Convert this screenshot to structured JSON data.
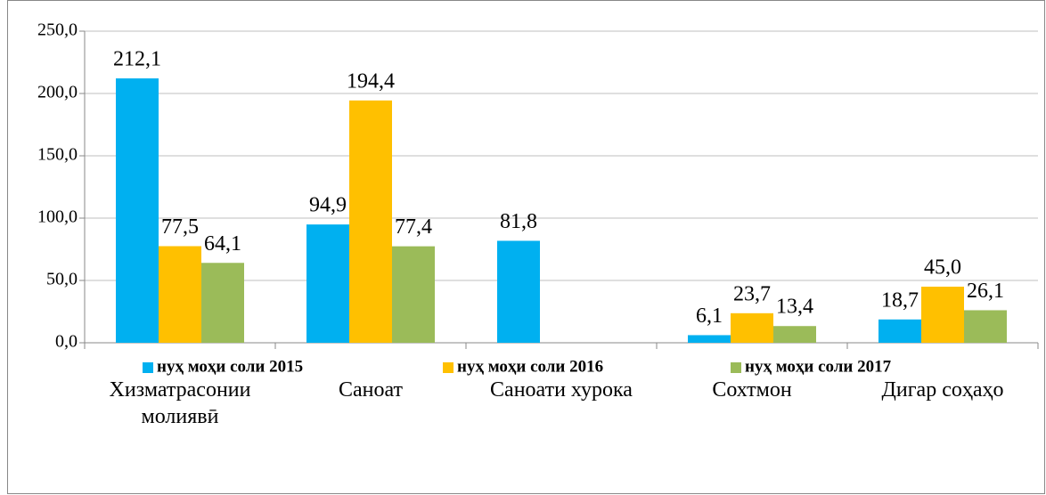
{
  "chart_data": {
    "type": "bar",
    "categories": [
      "Хизматрасонии молиявӣ",
      "Саноат",
      "Саноати хурока",
      "Сохтмон",
      "Дигар соҳаҳо"
    ],
    "series": [
      {
        "name": "нуҳ моҳи соли 2015",
        "color": "#00b0f0",
        "values": [
          212.1,
          94.9,
          81.8,
          6.1,
          18.7
        ],
        "value_labels": [
          "212,1",
          "94,9",
          "81,8",
          "6,1",
          "18,7"
        ]
      },
      {
        "name": "нуҳ моҳи соли 2016",
        "color": "#ffc000",
        "values": [
          77.5,
          194.4,
          null,
          23.7,
          45.0
        ],
        "value_labels": [
          "77,5",
          "194,4",
          null,
          "23,7",
          "45,0"
        ]
      },
      {
        "name": "нуҳ моҳи соли 2017",
        "color": "#9bbb59",
        "values": [
          64.1,
          77.4,
          null,
          13.4,
          26.1
        ],
        "value_labels": [
          "64,1",
          "77,4",
          null,
          "13,4",
          "26,1"
        ]
      }
    ],
    "ylim": [
      0,
      250
    ],
    "yticks": [
      {
        "value": 0,
        "label": "0,0"
      },
      {
        "value": 50,
        "label": "50,0"
      },
      {
        "value": 100,
        "label": "100,0"
      },
      {
        "value": 150,
        "label": "150,0"
      },
      {
        "value": 200,
        "label": "200,0"
      },
      {
        "value": 250,
        "label": "250,0"
      }
    ],
    "grid": true,
    "legend": "bottom"
  }
}
